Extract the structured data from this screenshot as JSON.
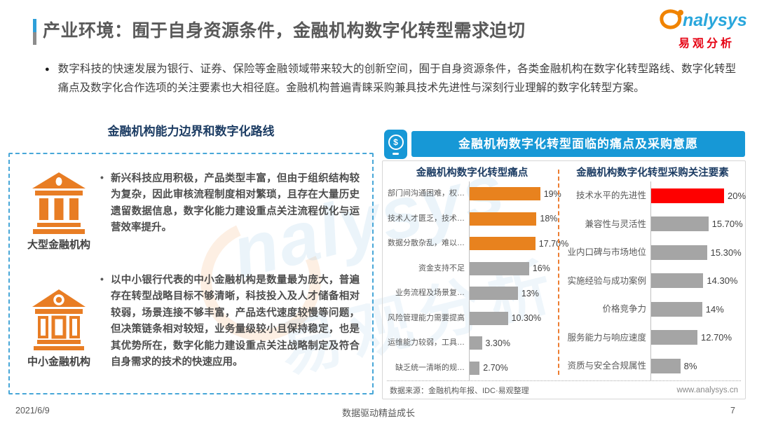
{
  "page": {
    "title": "产业环境：囿于自身资源条件，金融机构数字化转型需求迫切",
    "intro_bullet": "●",
    "intro": "数字科技的快速发展为银行、证券、保险等金融领域带来较大的创新空间，囿于自身资源条件，各类金融机构在数字化转型路线、数字化转型痛点及数字化合作选项的关注要素也大相径庭。金融机构普遍青睐采购兼具技术先进性与深刻行业理解的数字化转型方案。",
    "footer": {
      "date": "2021/6/9",
      "slogan": "数据驱动精益成长",
      "page_number": "7"
    }
  },
  "logo": {
    "brand": "nalysys",
    "brand_cn": "易观分析"
  },
  "watermark": {
    "line1": "nalysys",
    "line2": "易观分析"
  },
  "left_section": {
    "heading": "金融机构能力边界和数字化路线",
    "blocks": [
      {
        "icon": "bank-solid-icon",
        "label": "大型金融机构",
        "bullet": "•",
        "text": "新兴科技应用积极，产品类型丰富，但由于组织结构较为复杂，因此审核流程制度相对繁琐，且存在大量历史遗留数据信息，数字化能力建设重点关注流程优化与运营效率提升。"
      },
      {
        "icon": "bank-outline-icon",
        "label": "中小金融机构",
        "bullet": "•",
        "text": "以中小银行代表的中小金融机构是数量最为庞大，普遍存在转型战略目标不够清晰，科技投入及人才储备相对较弱，场景连接不够丰富，产品迭代速度较慢等问题，但决策链条相对较短，业务量级较小且保持稳定，也是其优势所在，数字化能力建设重点关注战略制定及符合自身需求的技术的快速应用。"
      }
    ]
  },
  "right_section": {
    "header": "金融机构数字化转型面临的痛点及采购意愿",
    "header_icon": "mobile-dollar-icon",
    "header_icon_glyph": "$",
    "source": "数据来源：金融机构年报、IDC·易观整理",
    "website": "www.analysys.cn"
  },
  "chart_data": [
    {
      "type": "bar",
      "orientation": "horizontal",
      "title": "金融机构数字化转型痛点",
      "categories": [
        "部门间沟通困难，权…",
        "技术人才匮乏，技术…",
        "数据分散杂乱，难以…",
        "资金支持不足",
        "业务流程及场景复…",
        "风险管理能力需要提高",
        "运维能力较弱，工具…",
        "缺乏统一清晰的规…"
      ],
      "values": [
        19,
        18,
        17.7,
        16,
        13,
        10.3,
        3.3,
        2.7
      ],
      "value_labels": [
        "19%",
        "18%",
        "17.70%",
        "16%",
        "13%",
        "10.30%",
        "3.30%",
        "2.70%"
      ],
      "bar_colors": [
        "orange",
        "orange",
        "orange",
        "gray",
        "gray",
        "gray",
        "gray",
        "gray"
      ],
      "xlim": [
        0,
        21
      ],
      "legend": "none",
      "grid": false
    },
    {
      "type": "bar",
      "orientation": "horizontal",
      "title": "金融机构数字化转型采购关注要素",
      "categories": [
        "技术水平的先进性",
        "兼容性与灵活性",
        "业内口碑与市场地位",
        "实施经验与成功案例",
        "价格竞争力",
        "服务能力与响应速度",
        "资质与安全合规属性"
      ],
      "values": [
        20,
        15.7,
        15.3,
        14.3,
        14,
        12.7,
        8
      ],
      "value_labels": [
        "20%",
        "15.70%",
        "15.30%",
        "14.30%",
        "14%",
        "12.70%",
        "8%"
      ],
      "bar_colors": [
        "red",
        "gray",
        "gray",
        "gray",
        "gray",
        "gray",
        "gray"
      ],
      "xlim": [
        0,
        21
      ],
      "legend": "none",
      "grid": false
    }
  ],
  "colors": {
    "accent_blue": "#1798d6",
    "bar_orange": "#e8821e",
    "bar_gray": "#a5a5a5",
    "bar_red": "#fe0000",
    "brand_blue": "#2aa7dc",
    "brand_red": "#e60012",
    "icon_orange": "#e87d24",
    "dashed_border_blue": "#48a7d8",
    "divider_orange": "#ed7d31",
    "title_gray": "#595959",
    "heading_navy": "#1c3c63"
  }
}
